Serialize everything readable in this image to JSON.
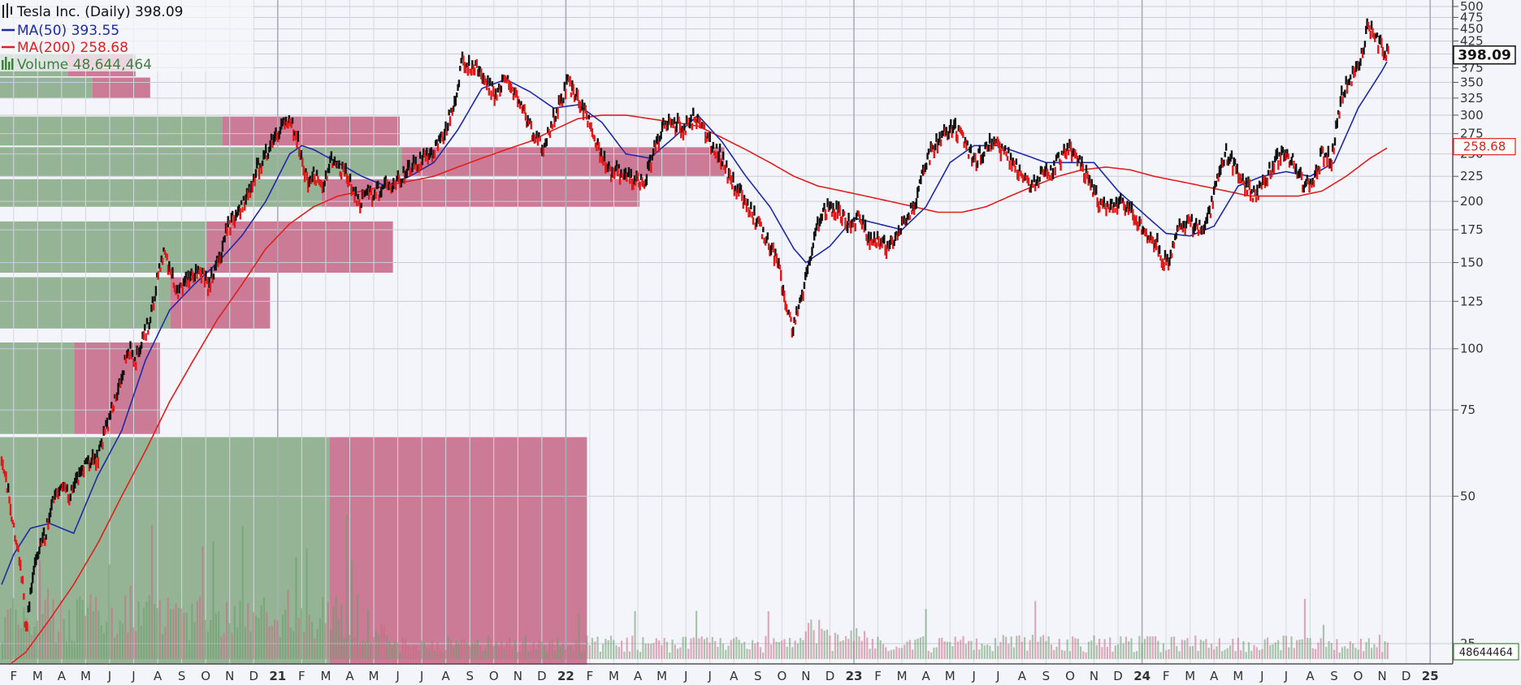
{
  "chart_data": {
    "type": "line",
    "title": "Tesla Inc. (Daily) 398.09",
    "legend": [
      {
        "label": "MA(50) 393.55",
        "color": "#1f2aa6"
      },
      {
        "label": "MA(200) 258.68",
        "color": "#e02020"
      },
      {
        "label": "Volume 48,644,464",
        "color": "#3f7f3f"
      }
    ],
    "last_price": 398.09,
    "last_price_label": "398.09",
    "ma200_label": "258.68",
    "volume_label": "48644464",
    "y_scale": "log",
    "y_ticks": [
      "25",
      "50",
      "75",
      "100",
      "125",
      "150",
      "175",
      "200",
      "225",
      "250",
      "275",
      "300",
      "325",
      "350",
      "375",
      "400",
      "425",
      "450",
      "475",
      "500"
    ],
    "x_labels": [
      "F",
      "M",
      "A",
      "M",
      "J",
      "J",
      "A",
      "S",
      "O",
      "N",
      "D",
      "21",
      "F",
      "M",
      "A",
      "M",
      "J",
      "J",
      "A",
      "S",
      "O",
      "N",
      "D",
      "22",
      "F",
      "M",
      "A",
      "M",
      "J",
      "J",
      "A",
      "S",
      "O",
      "N",
      "D",
      "23",
      "F",
      "M",
      "A",
      "M",
      "J",
      "J",
      "A",
      "S",
      "O",
      "N",
      "D",
      "24",
      "F",
      "M",
      "A",
      "M",
      "J",
      "J",
      "A",
      "S",
      "O",
      "N",
      "D",
      "25"
    ],
    "price_keypoints": [
      [
        0,
        60
      ],
      [
        0.3,
        50
      ],
      [
        0.6,
        40
      ],
      [
        0.9,
        33
      ],
      [
        1.0,
        26
      ],
      [
        1.3,
        35
      ],
      [
        1.7,
        40
      ],
      [
        2.0,
        45
      ],
      [
        2.3,
        52
      ],
      [
        2.8,
        50
      ],
      [
        3.2,
        55
      ],
      [
        3.6,
        58
      ],
      [
        4.0,
        60
      ],
      [
        4.4,
        70
      ],
      [
        4.9,
        85
      ],
      [
        5.3,
        100
      ],
      [
        5.6,
        95
      ],
      [
        5.9,
        105
      ],
      [
        6.2,
        115
      ],
      [
        6.5,
        140
      ],
      [
        6.8,
        160
      ],
      [
        7.0,
        145
      ],
      [
        7.3,
        130
      ],
      [
        7.8,
        140
      ],
      [
        8.2,
        145
      ],
      [
        8.6,
        135
      ],
      [
        9.0,
        150
      ],
      [
        9.4,
        175
      ],
      [
        9.8,
        190
      ],
      [
        10.2,
        205
      ],
      [
        10.6,
        230
      ],
      [
        11.0,
        250
      ],
      [
        11.4,
        275
      ],
      [
        11.8,
        290
      ],
      [
        12.1,
        285
      ],
      [
        12.4,
        260
      ],
      [
        12.7,
        220
      ],
      [
        13.0,
        230
      ],
      [
        13.3,
        210
      ],
      [
        13.7,
        240
      ],
      [
        14.1,
        235
      ],
      [
        14.5,
        220
      ],
      [
        14.9,
        200
      ],
      [
        15.3,
        205
      ],
      [
        15.7,
        210
      ],
      [
        16.1,
        215
      ],
      [
        16.5,
        222
      ],
      [
        16.9,
        230
      ],
      [
        17.3,
        240
      ],
      [
        17.7,
        248
      ],
      [
        18.1,
        255
      ],
      [
        18.5,
        280
      ],
      [
        18.9,
        330
      ],
      [
        19.2,
        390
      ],
      [
        19.5,
        380
      ],
      [
        19.8,
        370
      ],
      [
        20.2,
        350
      ],
      [
        20.6,
        330
      ],
      [
        20.9,
        360
      ],
      [
        21.2,
        340
      ],
      [
        21.6,
        320
      ],
      [
        21.9,
        290
      ],
      [
        22.2,
        270
      ],
      [
        22.6,
        260
      ],
      [
        23.0,
        300
      ],
      [
        23.3,
        320
      ],
      [
        23.6,
        350
      ],
      [
        23.9,
        330
      ],
      [
        24.3,
        300
      ],
      [
        24.7,
        270
      ],
      [
        25.0,
        250
      ],
      [
        25.3,
        230
      ],
      [
        25.7,
        230
      ],
      [
        26.0,
        225
      ],
      [
        26.4,
        220
      ],
      [
        26.8,
        220
      ],
      [
        27.2,
        255
      ],
      [
        27.6,
        285
      ],
      [
        28.0,
        290
      ],
      [
        28.4,
        280
      ],
      [
        28.8,
        295
      ],
      [
        29.1,
        285
      ],
      [
        29.5,
        265
      ],
      [
        29.9,
        250
      ],
      [
        30.3,
        225
      ],
      [
        30.7,
        210
      ],
      [
        31.1,
        195
      ],
      [
        31.5,
        180
      ],
      [
        31.9,
        165
      ],
      [
        32.3,
        150
      ],
      [
        32.6,
        130
      ],
      [
        32.9,
        110
      ],
      [
        33.2,
        120
      ],
      [
        33.5,
        140
      ],
      [
        33.8,
        165
      ],
      [
        34.1,
        185
      ],
      [
        34.5,
        195
      ],
      [
        34.9,
        190
      ],
      [
        35.3,
        180
      ],
      [
        35.7,
        185
      ],
      [
        36.1,
        170
      ],
      [
        36.5,
        165
      ],
      [
        36.9,
        160
      ],
      [
        37.3,
        175
      ],
      [
        37.7,
        185
      ],
      [
        38.1,
        200
      ],
      [
        38.5,
        240
      ],
      [
        38.9,
        260
      ],
      [
        39.3,
        275
      ],
      [
        39.7,
        280
      ],
      [
        40.1,
        265
      ],
      [
        40.5,
        240
      ],
      [
        40.9,
        255
      ],
      [
        41.3,
        265
      ],
      [
        41.7,
        255
      ],
      [
        42.1,
        240
      ],
      [
        42.5,
        230
      ],
      [
        42.9,
        215
      ],
      [
        43.3,
        225
      ],
      [
        43.7,
        230
      ],
      [
        44.1,
        245
      ],
      [
        44.5,
        255
      ],
      [
        44.9,
        240
      ],
      [
        45.3,
        220
      ],
      [
        45.7,
        200
      ],
      [
        46.1,
        190
      ],
      [
        46.5,
        200
      ],
      [
        46.9,
        195
      ],
      [
        47.3,
        180
      ],
      [
        47.7,
        170
      ],
      [
        48.1,
        165
      ],
      [
        48.4,
        150
      ],
      [
        48.7,
        155
      ],
      [
        49.0,
        175
      ],
      [
        49.4,
        180
      ],
      [
        49.8,
        178
      ],
      [
        50.2,
        180
      ],
      [
        50.6,
        215
      ],
      [
        51.0,
        250
      ],
      [
        51.4,
        235
      ],
      [
        51.8,
        215
      ],
      [
        52.2,
        205
      ],
      [
        52.6,
        220
      ],
      [
        53.0,
        240
      ],
      [
        53.4,
        250
      ],
      [
        53.8,
        240
      ],
      [
        54.2,
        218
      ],
      [
        54.6,
        215
      ],
      [
        55.0,
        250
      ],
      [
        55.4,
        245
      ],
      [
        55.8,
        330
      ],
      [
        56.2,
        355
      ],
      [
        56.6,
        390
      ],
      [
        56.9,
        460
      ],
      [
        57.2,
        430
      ],
      [
        57.5,
        410
      ],
      [
        57.8,
        398
      ]
    ],
    "ma50_keypoints": [
      [
        0,
        33
      ],
      [
        0.5,
        38
      ],
      [
        1.2,
        43
      ],
      [
        2.0,
        44
      ],
      [
        3.0,
        42
      ],
      [
        4.0,
        55
      ],
      [
        5.0,
        68
      ],
      [
        6.0,
        95
      ],
      [
        7.0,
        120
      ],
      [
        8.0,
        135
      ],
      [
        9.0,
        150
      ],
      [
        10.0,
        170
      ],
      [
        11.0,
        200
      ],
      [
        12.0,
        250
      ],
      [
        12.5,
        260
      ],
      [
        13.0,
        255
      ],
      [
        14.0,
        240
      ],
      [
        15.0,
        225
      ],
      [
        16.0,
        215
      ],
      [
        17.0,
        225
      ],
      [
        18.0,
        240
      ],
      [
        19.0,
        280
      ],
      [
        20.0,
        340
      ],
      [
        21.0,
        355
      ],
      [
        22.0,
        335
      ],
      [
        23.0,
        310
      ],
      [
        24.0,
        315
      ],
      [
        25.0,
        290
      ],
      [
        26.0,
        250
      ],
      [
        27.0,
        245
      ],
      [
        28.0,
        270
      ],
      [
        29.0,
        300
      ],
      [
        30.0,
        265
      ],
      [
        31.0,
        225
      ],
      [
        32.0,
        195
      ],
      [
        33.0,
        160
      ],
      [
        33.5,
        150
      ],
      [
        34.5,
        162
      ],
      [
        35.5,
        185
      ],
      [
        36.5,
        180
      ],
      [
        37.5,
        175
      ],
      [
        38.5,
        195
      ],
      [
        39.5,
        240
      ],
      [
        40.5,
        260
      ],
      [
        41.5,
        260
      ],
      [
        42.5,
        250
      ],
      [
        43.5,
        240
      ],
      [
        44.5,
        240
      ],
      [
        45.5,
        240
      ],
      [
        46.5,
        210
      ],
      [
        47.5,
        190
      ],
      [
        48.5,
        172
      ],
      [
        49.5,
        170
      ],
      [
        50.5,
        178
      ],
      [
        51.5,
        215
      ],
      [
        52.5,
        225
      ],
      [
        53.5,
        230
      ],
      [
        54.5,
        225
      ],
      [
        55.5,
        240
      ],
      [
        56.5,
        310
      ],
      [
        57.5,
        370
      ],
      [
        57.8,
        393.55
      ]
    ],
    "ma200_keypoints": [
      [
        0,
        22
      ],
      [
        1.0,
        24
      ],
      [
        2.0,
        28
      ],
      [
        3.0,
        33
      ],
      [
        4.0,
        40
      ],
      [
        5.0,
        50
      ],
      [
        6.0,
        62
      ],
      [
        7.0,
        78
      ],
      [
        8.0,
        95
      ],
      [
        9.0,
        115
      ],
      [
        10.0,
        135
      ],
      [
        11.0,
        160
      ],
      [
        12.0,
        180
      ],
      [
        13.0,
        195
      ],
      [
        14.0,
        205
      ],
      [
        15.0,
        210
      ],
      [
        16.0,
        215
      ],
      [
        17.0,
        220
      ],
      [
        18.0,
        225
      ],
      [
        19.0,
        235
      ],
      [
        20.0,
        245
      ],
      [
        21.0,
        255
      ],
      [
        22.0,
        265
      ],
      [
        23.0,
        280
      ],
      [
        24.0,
        295
      ],
      [
        25.0,
        300
      ],
      [
        26.0,
        300
      ],
      [
        27.0,
        295
      ],
      [
        28.0,
        290
      ],
      [
        29.0,
        285
      ],
      [
        30.0,
        270
      ],
      [
        31.0,
        255
      ],
      [
        32.0,
        240
      ],
      [
        33.0,
        225
      ],
      [
        34.0,
        215
      ],
      [
        35.0,
        210
      ],
      [
        36.0,
        205
      ],
      [
        37.0,
        200
      ],
      [
        38.0,
        195
      ],
      [
        39.0,
        190
      ],
      [
        40.0,
        190
      ],
      [
        41.0,
        195
      ],
      [
        42.0,
        205
      ],
      [
        43.0,
        215
      ],
      [
        44.0,
        225
      ],
      [
        45.0,
        232
      ],
      [
        46.0,
        235
      ],
      [
        47.0,
        232
      ],
      [
        48.0,
        225
      ],
      [
        49.0,
        220
      ],
      [
        50.0,
        215
      ],
      [
        51.0,
        210
      ],
      [
        52.0,
        205
      ],
      [
        53.0,
        205
      ],
      [
        54.0,
        205
      ],
      [
        55.0,
        210
      ],
      [
        56.0,
        225
      ],
      [
        57.0,
        245
      ],
      [
        57.8,
        258.68
      ]
    ],
    "volume_by_price": [
      {
        "low": 360,
        "high": 400,
        "up": 70,
        "down": 69
      },
      {
        "low": 325,
        "high": 358,
        "up": 95,
        "down": 59
      },
      {
        "low": 260,
        "high": 298,
        "up": 228,
        "down": 182
      },
      {
        "low": 225,
        "high": 258,
        "up": 412,
        "down": 331
      },
      {
        "low": 195,
        "high": 222,
        "up": 330,
        "down": 326
      },
      {
        "low": 143,
        "high": 182,
        "up": 212,
        "down": 191
      },
      {
        "low": 110,
        "high": 140,
        "up": 175,
        "down": 102
      },
      {
        "low": 67,
        "high": 103,
        "up": 76,
        "down": 88
      },
      {
        "low": 22,
        "high": 66,
        "up": 338,
        "down": 264
      }
    ]
  }
}
